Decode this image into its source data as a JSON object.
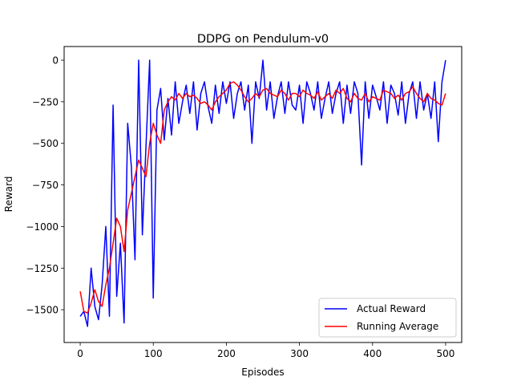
{
  "chart_data": {
    "type": "line",
    "title": "DDPG on Pendulum-v0",
    "xlabel": "Episodes",
    "ylabel": "Reward",
    "xlim": [
      -22,
      522
    ],
    "ylim": [
      -1697,
      82
    ],
    "xticks": [
      0,
      100,
      200,
      300,
      400,
      500
    ],
    "xtick_labels": [
      "0",
      "100",
      "200",
      "300",
      "400",
      "500"
    ],
    "yticks": [
      0,
      -250,
      -500,
      -750,
      -1000,
      -1250,
      -1500
    ],
    "ytick_labels": [
      "0",
      "−250",
      "−500",
      "−750",
      "−1000",
      "−1250",
      "−1500"
    ],
    "grid": false,
    "legend_position": "lower-right",
    "series": [
      {
        "name": "Actual Reward",
        "color": "#0000ff",
        "x": [
          0,
          5,
          10,
          15,
          20,
          25,
          30,
          35,
          40,
          45,
          50,
          55,
          60,
          65,
          70,
          75,
          80,
          85,
          90,
          95,
          100,
          105,
          110,
          115,
          120,
          125,
          130,
          135,
          140,
          145,
          150,
          155,
          160,
          165,
          170,
          175,
          180,
          185,
          190,
          195,
          200,
          205,
          210,
          215,
          220,
          225,
          230,
          235,
          240,
          245,
          250,
          255,
          260,
          265,
          270,
          275,
          280,
          285,
          290,
          295,
          300,
          305,
          310,
          315,
          320,
          325,
          330,
          335,
          340,
          345,
          350,
          355,
          360,
          365,
          370,
          375,
          380,
          385,
          390,
          395,
          400,
          405,
          410,
          415,
          420,
          425,
          430,
          435,
          440,
          445,
          450,
          455,
          460,
          465,
          470,
          475,
          480,
          485,
          490,
          495,
          500
        ],
        "values": [
          -1540,
          -1510,
          -1600,
          -1250,
          -1480,
          -1560,
          -1350,
          -1000,
          -1540,
          -270,
          -1420,
          -1100,
          -1580,
          -380,
          -640,
          -1200,
          0,
          -1050,
          -520,
          0,
          -1430,
          -300,
          -170,
          -480,
          -230,
          -450,
          -130,
          -380,
          -250,
          -150,
          -320,
          -130,
          -420,
          -200,
          -130,
          -280,
          -380,
          -150,
          -320,
          -130,
          -260,
          -130,
          -350,
          -200,
          -130,
          -300,
          -150,
          -500,
          -130,
          -230,
          0,
          -300,
          -130,
          -350,
          -220,
          -130,
          -320,
          -130,
          -270,
          -300,
          -150,
          -380,
          -130,
          -200,
          -300,
          -130,
          -350,
          -230,
          -130,
          -320,
          -200,
          -130,
          -380,
          -150,
          -320,
          -130,
          -200,
          -630,
          -130,
          -350,
          -150,
          -220,
          -300,
          -130,
          -380,
          -150,
          -200,
          -330,
          -130,
          -380,
          -200,
          -130,
          -350,
          -130,
          -300,
          -200,
          -350,
          -130,
          -490,
          -130,
          0
        ]
      },
      {
        "name": "Running Average",
        "color": "#ff0000",
        "x": [
          0,
          5,
          10,
          15,
          20,
          25,
          30,
          35,
          40,
          45,
          50,
          55,
          60,
          65,
          70,
          75,
          80,
          85,
          90,
          95,
          100,
          105,
          110,
          115,
          120,
          125,
          130,
          135,
          140,
          145,
          150,
          155,
          160,
          165,
          170,
          175,
          180,
          185,
          190,
          195,
          200,
          205,
          210,
          215,
          220,
          225,
          230,
          235,
          240,
          245,
          250,
          255,
          260,
          265,
          270,
          275,
          280,
          285,
          290,
          295,
          300,
          305,
          310,
          315,
          320,
          325,
          330,
          335,
          340,
          345,
          350,
          355,
          360,
          365,
          370,
          375,
          380,
          385,
          390,
          395,
          400,
          405,
          410,
          415,
          420,
          425,
          430,
          435,
          440,
          445,
          450,
          455,
          460,
          465,
          470,
          475,
          480,
          485,
          490,
          495,
          500
        ],
        "values": [
          -1390,
          -1510,
          -1520,
          -1460,
          -1380,
          -1450,
          -1480,
          -1350,
          -1250,
          -1100,
          -950,
          -1000,
          -1150,
          -900,
          -800,
          -700,
          -600,
          -650,
          -700,
          -500,
          -380,
          -450,
          -500,
          -300,
          -250,
          -220,
          -240,
          -200,
          -230,
          -200,
          -220,
          -210,
          -230,
          -260,
          -250,
          -270,
          -300,
          -250,
          -220,
          -200,
          -180,
          -140,
          -130,
          -150,
          -180,
          -220,
          -250,
          -230,
          -200,
          -220,
          -180,
          -170,
          -200,
          -210,
          -220,
          -180,
          -200,
          -240,
          -200,
          -200,
          -220,
          -180,
          -200,
          -210,
          -230,
          -190,
          -240,
          -220,
          -200,
          -230,
          -180,
          -200,
          -170,
          -230,
          -250,
          -200,
          -230,
          -240,
          -200,
          -250,
          -220,
          -230,
          -240,
          -180,
          -190,
          -200,
          -230,
          -210,
          -240,
          -200,
          -190,
          -160,
          -200,
          -230,
          -250,
          -200,
          -230,
          -240,
          -260,
          -270,
          -200
        ]
      }
    ]
  }
}
